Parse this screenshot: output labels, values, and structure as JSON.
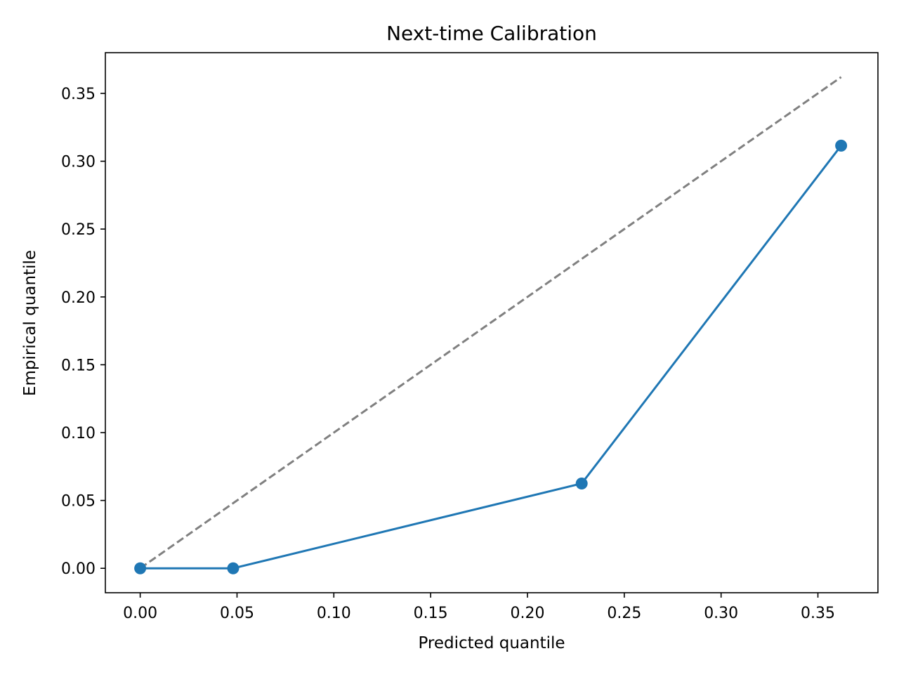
{
  "chart_data": {
    "type": "line",
    "title": "Next-time Calibration",
    "xlabel": "Predicted quantile",
    "ylabel": "Empirical quantile",
    "xlim": [
      -0.018,
      0.381
    ],
    "ylim": [
      -0.018,
      0.38
    ],
    "x_ticks": [
      0.0,
      0.05,
      0.1,
      0.15,
      0.2,
      0.25,
      0.3,
      0.35
    ],
    "x_tick_labels": [
      "0.00",
      "0.05",
      "0.10",
      "0.15",
      "0.20",
      "0.25",
      "0.30",
      "0.35"
    ],
    "y_ticks": [
      0.0,
      0.05,
      0.1,
      0.15,
      0.2,
      0.25,
      0.3,
      0.35
    ],
    "y_tick_labels": [
      "0.00",
      "0.05",
      "0.10",
      "0.15",
      "0.20",
      "0.25",
      "0.30",
      "0.35"
    ],
    "grid": false,
    "legend": false,
    "series": [
      {
        "x": [
          0.0,
          0.048,
          0.228,
          0.362
        ],
        "y": [
          0.0,
          0.0,
          0.0625,
          0.3115
        ],
        "color": "#1f77b4",
        "style": "solid",
        "markers": true
      },
      {
        "x": [
          0.0,
          0.362
        ],
        "y": [
          0.0,
          0.362
        ],
        "color": "#808080",
        "style": "dashed",
        "markers": false
      }
    ]
  }
}
